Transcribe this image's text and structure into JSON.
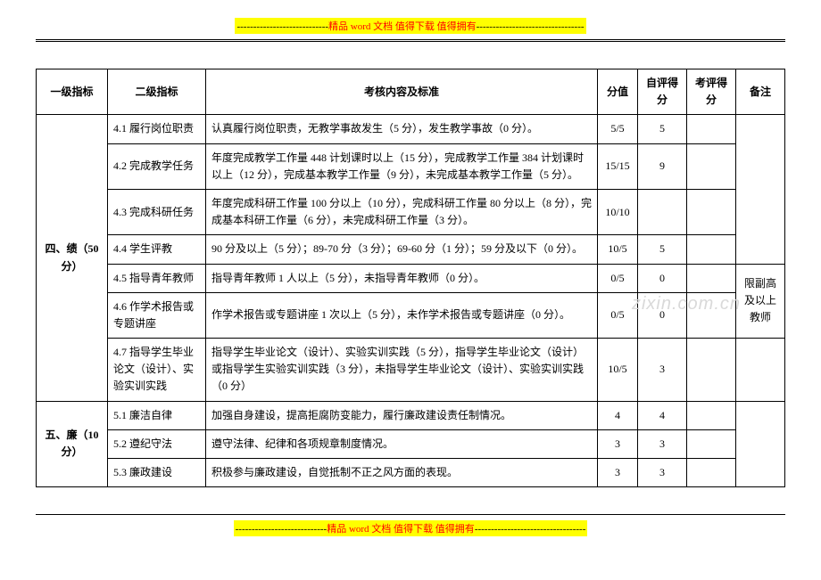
{
  "header_banner": {
    "dashes_left": "----------------------------",
    "prefix": "精品",
    "word": " word ",
    "mid": "文档 值得下载 值得拥有",
    "dashes_right": "---------------------------------"
  },
  "footer_banner": {
    "dashes_left": "----------------------------",
    "prefix": "精品",
    "word": " word ",
    "mid": "文档 值得下载 值得拥有",
    "dashes_right": "----------------------------------"
  },
  "watermark": "zixin.com.cn",
  "headers": {
    "l1": "一级指标",
    "l2": "二级指标",
    "content": "考核内容及标准",
    "score": "分值",
    "self": "自评得分",
    "eval": "考评得分",
    "note": "备注"
  },
  "section4": {
    "title": "四、绩（50 分）",
    "rows": [
      {
        "l2": "4.1 履行岗位职责",
        "content": "认真履行岗位职责，无教学事故发生（5 分），发生教学事故（0 分）。",
        "score": "5/5",
        "self": "5"
      },
      {
        "l2": "4.2 完成教学任务",
        "content": "年度完成教学工作量 448 计划课时以上（15 分），完成教学工作量 384 计划课时以上（12 分），完成基本教学工作量（9 分），未完成基本教学工作量（5 分）。",
        "score": "15/15",
        "self": "9"
      },
      {
        "l2": "4.3 完成科研任务",
        "content": "年度完成科研工作量 100 分以上（10 分），完成科研工作量 80 分以上（8 分），完成基本科研工作量（6 分），未完成科研工作量（3 分）。",
        "score": "10/10",
        "self": ""
      },
      {
        "l2": "4.4 学生评教",
        "content": "90 分及以上（5 分）；89-70 分（3 分）；69-60 分（1 分）；59 分及以下（0 分）。",
        "score": "10/5",
        "self": "5"
      },
      {
        "l2": "4.5 指导青年教师",
        "content": "指导青年教师 1 人以上（5 分），未指导青年教师（0 分）。",
        "score": "0/5",
        "self": "0"
      },
      {
        "l2": "4.6 作学术报告或专题讲座",
        "content": "作学术报告或专题讲座 1 次以上（5 分），未作学术报告或专题讲座（0 分）。",
        "score": "0/5",
        "self": "0"
      },
      {
        "l2": "4.7 指导学生毕业论文（设计）、实验实训实践",
        "content": "指导学生毕业论文（设计）、实验实训实践（5 分），指导学生毕业论文（设计）或指导学生实验实训实践（3 分），未指导学生毕业论文（设计）、实验实训实践（0 分）",
        "score": "10/5",
        "self": "3"
      }
    ],
    "note": "限副高及以上教师"
  },
  "section5": {
    "title": "五、廉（10 分）",
    "rows": [
      {
        "l2": "5.1 廉洁自律",
        "content": "加强自身建设，提高拒腐防变能力，履行廉政建设责任制情况。",
        "score": "4",
        "self": "4"
      },
      {
        "l2": "5.2 遵纪守法",
        "content": "遵守法律、纪律和各项规章制度情况。",
        "score": "3",
        "self": "3"
      },
      {
        "l2": "5.3 廉政建设",
        "content": "积极参与廉政建设，自觉抵制不正之风方面的表现。",
        "score": "3",
        "self": "3"
      }
    ]
  }
}
